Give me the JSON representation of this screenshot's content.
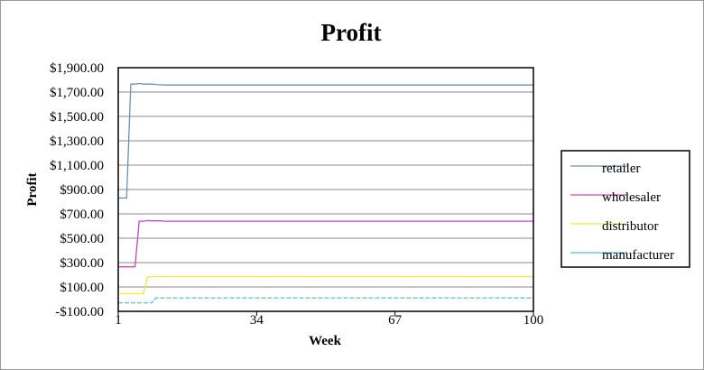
{
  "chart_data": {
    "type": "line",
    "title": "Profit",
    "xlabel": "Week",
    "ylabel": "Profit",
    "xlim": [
      1,
      100
    ],
    "ylim": [
      -100,
      1900
    ],
    "yticks": [
      -100,
      100,
      300,
      500,
      700,
      900,
      1100,
      1300,
      1500,
      1700,
      1900
    ],
    "ytick_labels": [
      "-$100.00",
      "$100.00",
      "$300.00",
      "$500.00",
      "$700.00",
      "$900.00",
      "$1,100.00",
      "$1,300.00",
      "$1,500.00",
      "$1,700.00",
      "$1,900.00"
    ],
    "xticks": [
      1,
      34,
      67,
      100
    ],
    "xtick_labels": [
      "1",
      "34",
      "67",
      "100"
    ],
    "grid": "horizontal",
    "legend_position": "right",
    "series": [
      {
        "name": "retailer",
        "color": "#6a8fc0",
        "style": "solid",
        "x": [
          1,
          3,
          4,
          5,
          6,
          7,
          8,
          9,
          10,
          11,
          12,
          100
        ],
        "y": [
          830,
          830,
          1765,
          1765,
          1770,
          1765,
          1765,
          1765,
          1762,
          1760,
          1758,
          1758
        ]
      },
      {
        "name": "wholesaler",
        "color": "#cc44cc",
        "style": "solid",
        "x": [
          1,
          5,
          6,
          7,
          8,
          9,
          10,
          11,
          12,
          100
        ],
        "y": [
          265,
          265,
          640,
          640,
          645,
          643,
          643,
          643,
          640,
          640
        ]
      },
      {
        "name": "distributor",
        "color": "#eeee33",
        "style": "solid",
        "x": [
          1,
          7,
          8,
          9,
          10,
          11,
          12,
          100
        ],
        "y": [
          45,
          45,
          180,
          185,
          188,
          185,
          185,
          185
        ]
      },
      {
        "name": "manufacturer",
        "color": "#55bbee",
        "style": "dashed",
        "x": [
          1,
          9,
          10,
          11,
          100
        ],
        "y": [
          -30,
          -30,
          10,
          10,
          10
        ]
      }
    ]
  }
}
